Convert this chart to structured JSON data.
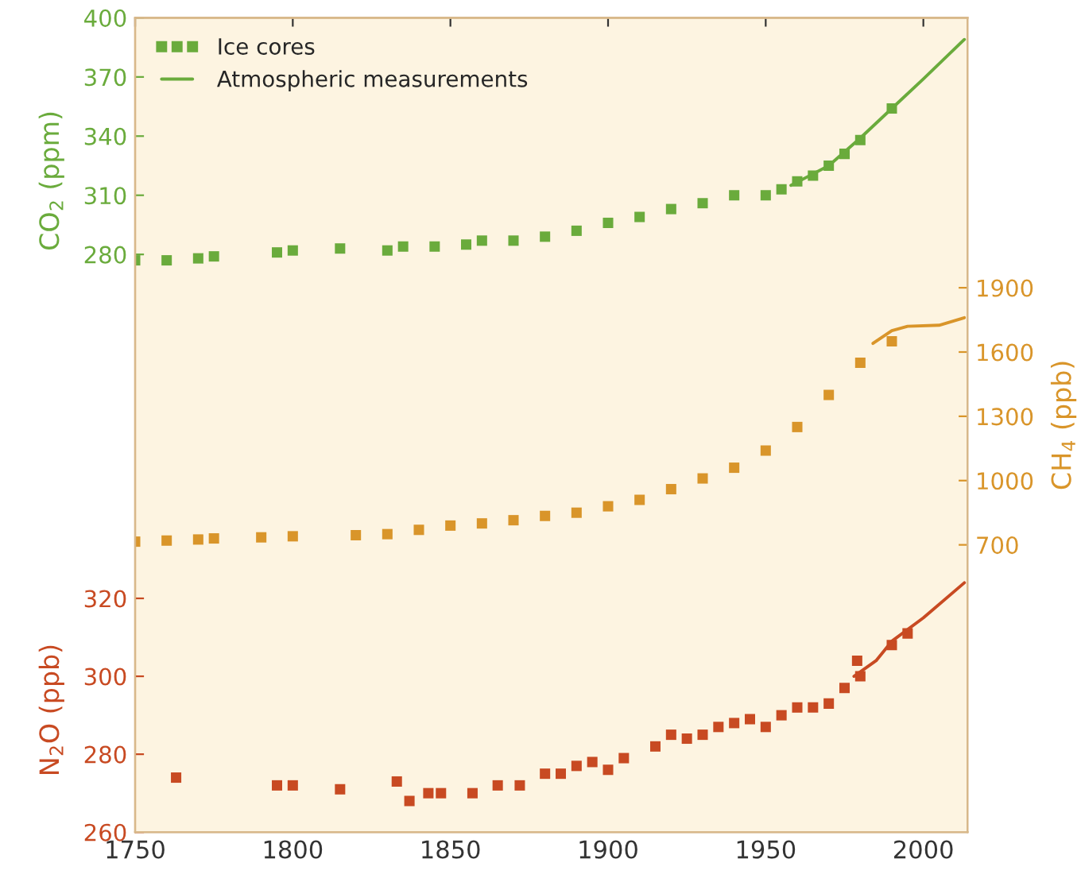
{
  "chart_data": {
    "type": "scatter",
    "xlim": [
      1750,
      2014
    ],
    "xticks": [
      1750,
      1800,
      1850,
      1900,
      1950,
      2000
    ],
    "ylim": [
      -13,
      400
    ],
    "yticks": [
      280,
      310,
      340,
      370,
      400
    ],
    "ylabel": "CO$_{2}$ (ppm)",
    "y2lim": [
      -641,
      3160
    ],
    "y2ticks": [
      700,
      1000,
      1300,
      1600,
      1900
    ],
    "y2label": "CH$_{4}$ (ppb)",
    "y3lim": [
      260,
      469
    ],
    "y3ticks": [
      260,
      280,
      300,
      320
    ],
    "y3label": "N$_{2}$O (ppb)",
    "legend": "top left",
    "grid": false,
    "series": [
      {
        "name": "Ice cores",
        "marker": "square",
        "axis": "y",
        "color": "#6aab3c",
        "x": [
          1750,
          1760,
          1770,
          1775,
          1795,
          1800,
          1815,
          1830,
          1835,
          1845,
          1855,
          1860,
          1870,
          1880,
          1890,
          1900,
          1910,
          1920,
          1930,
          1940,
          1950,
          1955,
          1960,
          1965,
          1970,
          1975,
          1980,
          1990
        ],
        "values": [
          277,
          277,
          278,
          279,
          281,
          282,
          283,
          282,
          284,
          284,
          285,
          287,
          287,
          289,
          292,
          296,
          299,
          303,
          306,
          310,
          310,
          313,
          317,
          320,
          325,
          331,
          338,
          354
        ]
      },
      {
        "name": "Atmospheric measurements",
        "type": "line",
        "marker": "none",
        "axis": "y",
        "color": "#6aab3c",
        "x": [
          1958,
          1970,
          1980,
          1990,
          2000,
          2013
        ],
        "values": [
          315,
          325,
          339,
          354,
          369,
          389
        ]
      },
      {
        "marker": "square",
        "axis": "y2",
        "color": "#d9952a",
        "x": [
          1750,
          1760,
          1770,
          1775,
          1790,
          1800,
          1820,
          1830,
          1840,
          1850,
          1860,
          1870,
          1880,
          1890,
          1900,
          1910,
          1920,
          1930,
          1940,
          1950,
          1960,
          1970,
          1980,
          1990
        ],
        "values": [
          715,
          720,
          725,
          730,
          735,
          740,
          745,
          750,
          770,
          790,
          800,
          815,
          835,
          850,
          880,
          910,
          960,
          1010,
          1060,
          1140,
          1250,
          1400,
          1550,
          1650
        ]
      },
      {
        "type": "line",
        "marker": "none",
        "axis": "y2",
        "color": "#d9952a",
        "x": [
          1984,
          1990,
          1995,
          2005,
          2013
        ],
        "values": [
          1640,
          1700,
          1720,
          1725,
          1760
        ]
      },
      {
        "marker": "square",
        "axis": "y3",
        "color": "#c84a22",
        "x": [
          1763,
          1795,
          1800,
          1815,
          1833,
          1837,
          1843,
          1847,
          1857,
          1865,
          1872,
          1880,
          1885,
          1890,
          1895,
          1900,
          1905,
          1915,
          1920,
          1925,
          1930,
          1935,
          1940,
          1945,
          1950,
          1955,
          1960,
          1965,
          1970,
          1975,
          1979,
          1980,
          1990,
          1995
        ],
        "values": [
          274,
          272,
          272,
          271,
          273,
          268,
          270,
          270,
          270,
          272,
          272,
          275,
          275,
          277,
          278,
          276,
          279,
          282,
          285,
          284,
          285,
          287,
          288,
          289,
          287,
          290,
          292,
          292,
          293,
          297,
          304,
          300,
          308,
          311
        ]
      },
      {
        "type": "line",
        "marker": "none",
        "axis": "y3",
        "color": "#c84a22",
        "x": [
          1978,
          1985,
          1990,
          2000,
          2013
        ],
        "values": [
          300,
          304,
          309,
          315,
          324
        ]
      }
    ]
  }
}
